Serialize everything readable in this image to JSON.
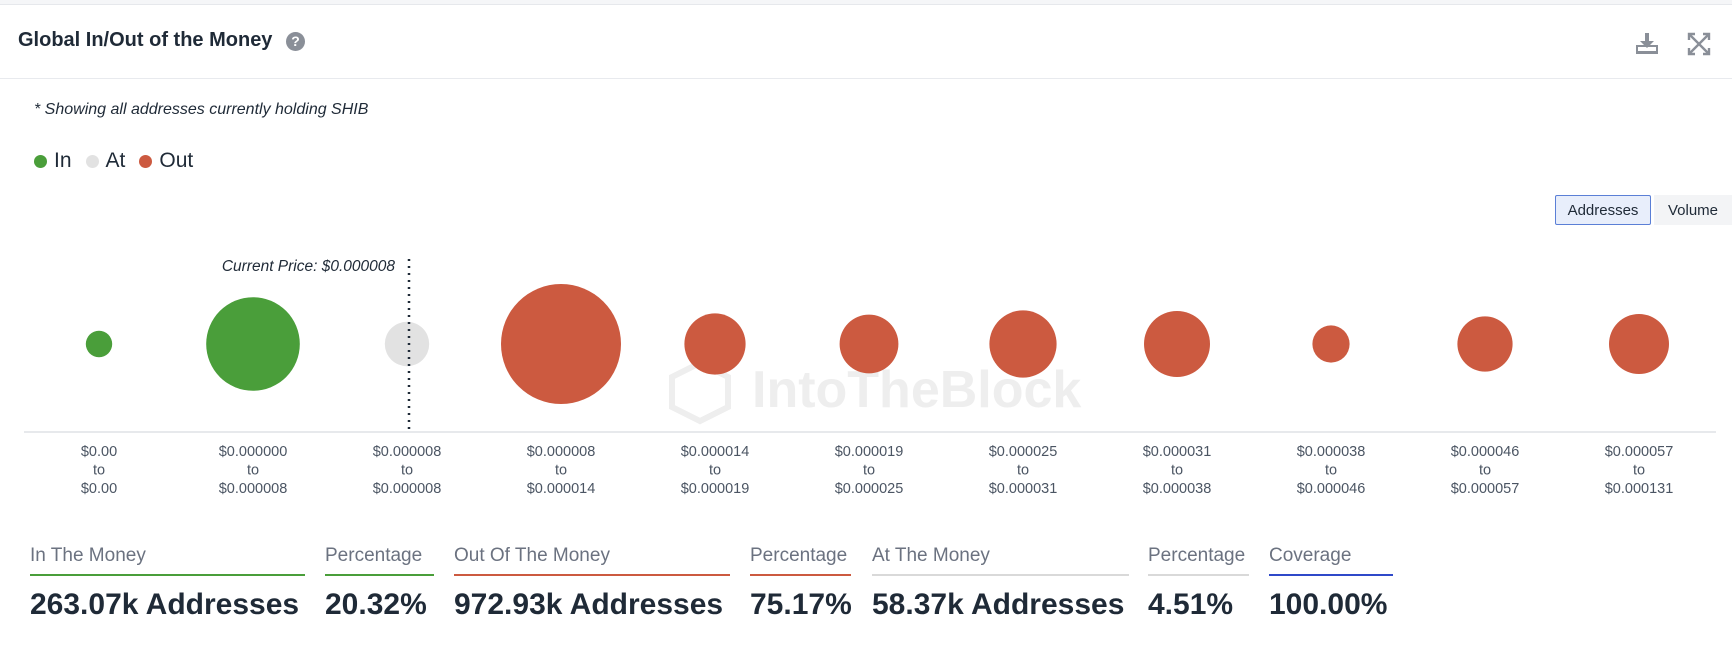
{
  "header": {
    "title": "Global In/Out of the Money",
    "help_icon": "question-circle-icon",
    "download_icon": "download-icon",
    "expand_icon": "expand-icon"
  },
  "note": "* Showing all addresses currently holding SHIB",
  "legend": [
    {
      "label": "In",
      "color": "#4a9e3a"
    },
    {
      "label": "At",
      "color": "#e2e2e2"
    },
    {
      "label": "Out",
      "color": "#cc5a40"
    }
  ],
  "toggle": {
    "addresses": "Addresses",
    "volume": "Volume",
    "selected": "Addresses"
  },
  "chart_data": {
    "type": "bubble",
    "current_price_label": "Current Price: $0.000008",
    "current_price_after_bucket": 2,
    "buckets": [
      {
        "low": "$0.00",
        "to": "to",
        "high": "$0.00",
        "status": "In",
        "size": 0.22
      },
      {
        "low": "$0.000000",
        "to": "to",
        "high": "$0.000008",
        "status": "In",
        "size": 0.78
      },
      {
        "low": "$0.000008",
        "to": "to",
        "high": "$0.000008",
        "status": "At",
        "size": 0.37
      },
      {
        "low": "$0.000008",
        "to": "to",
        "high": "$0.000014",
        "status": "Out",
        "size": 1.0
      },
      {
        "low": "$0.000014",
        "to": "to",
        "high": "$0.000019",
        "status": "Out",
        "size": 0.51
      },
      {
        "low": "$0.000019",
        "to": "to",
        "high": "$0.000025",
        "status": "Out",
        "size": 0.49
      },
      {
        "low": "$0.000025",
        "to": "to",
        "high": "$0.000031",
        "status": "Out",
        "size": 0.56
      },
      {
        "low": "$0.000031",
        "to": "to",
        "high": "$0.000038",
        "status": "Out",
        "size": 0.55
      },
      {
        "low": "$0.000038",
        "to": "to",
        "high": "$0.000046",
        "status": "Out",
        "size": 0.31
      },
      {
        "low": "$0.000046",
        "to": "to",
        "high": "$0.000057",
        "status": "Out",
        "size": 0.46
      },
      {
        "low": "$0.000057",
        "to": "to",
        "high": "$0.000131",
        "status": "Out",
        "size": 0.5
      }
    ],
    "watermark": "IntoTheBlock"
  },
  "stats": [
    {
      "label": "In The Money",
      "value": "263.07k Addresses",
      "color": "#4a9e3a"
    },
    {
      "label": "Percentage",
      "value": "20.32%",
      "color": "#4a9e3a"
    },
    {
      "label": "Out Of The Money",
      "value": "972.93k Addresses",
      "color": "#cc5a40"
    },
    {
      "label": "Percentage",
      "value": "75.17%",
      "color": "#cc5a40"
    },
    {
      "label": "At The Money",
      "value": "58.37k Addresses",
      "color": "#d9d9d9"
    },
    {
      "label": "Percentage",
      "value": "4.51%",
      "color": "#d9d9d9"
    },
    {
      "label": "Coverage",
      "value": "100.00%",
      "color": "#2f49c9"
    }
  ]
}
